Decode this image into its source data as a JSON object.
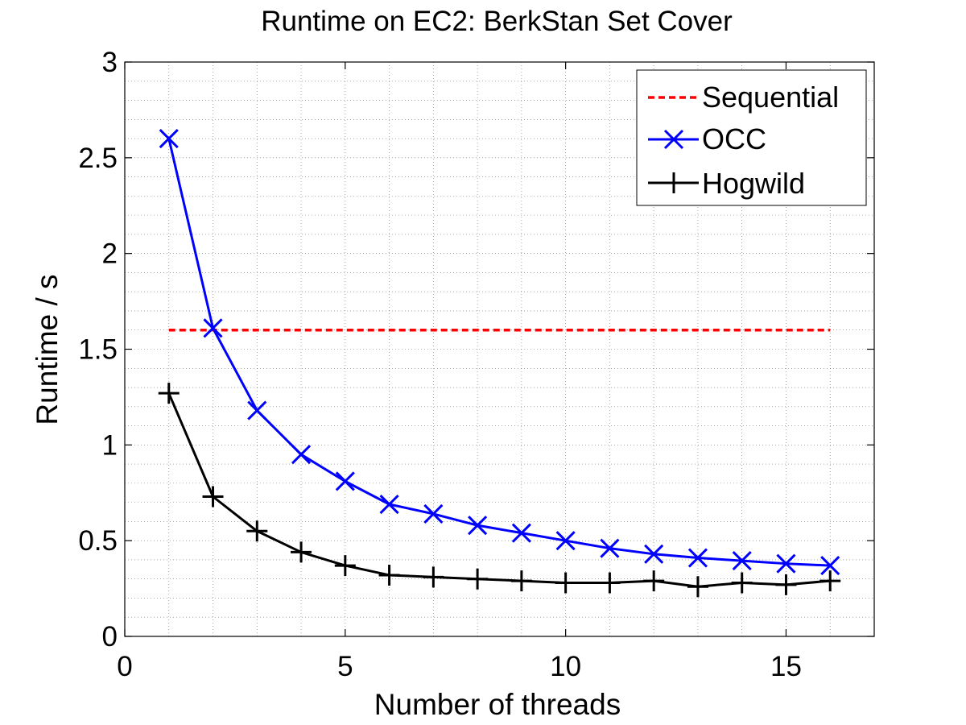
{
  "chart_data": {
    "type": "line",
    "title": "Runtime on EC2: BerkStan Set Cover",
    "xlabel": "Number of threads",
    "ylabel": "Runtime / s",
    "xlim": [
      0,
      17
    ],
    "ylim": [
      0,
      3
    ],
    "xticks": [
      0,
      5,
      10,
      15
    ],
    "yticks": [
      0,
      0.5,
      1,
      1.5,
      2,
      2.5,
      3
    ],
    "xtick_labels": [
      "0",
      "5",
      "10",
      "15"
    ],
    "ytick_labels": [
      "0",
      "0.5",
      "1",
      "1.5",
      "2",
      "2.5",
      "3"
    ],
    "grid": "major and minor, dotted",
    "legend_position": "top-right",
    "series": [
      {
        "name": "Sequential",
        "color": "#ff0000",
        "style": "dashed",
        "marker": "none",
        "x": [
          1,
          16
        ],
        "y": [
          1.6,
          1.6
        ]
      },
      {
        "name": "OCC",
        "color": "#0000ff",
        "style": "solid",
        "marker": "x",
        "x": [
          1,
          2,
          3,
          4,
          5,
          6,
          7,
          8,
          9,
          10,
          11,
          12,
          13,
          14,
          15,
          16
        ],
        "y": [
          2.6,
          1.61,
          1.18,
          0.95,
          0.81,
          0.69,
          0.64,
          0.58,
          0.54,
          0.5,
          0.46,
          0.43,
          0.41,
          0.395,
          0.38,
          0.37
        ]
      },
      {
        "name": "Hogwild",
        "color": "#000000",
        "style": "solid",
        "marker": "+",
        "x": [
          1,
          2,
          3,
          4,
          5,
          6,
          7,
          8,
          9,
          10,
          11,
          12,
          13,
          14,
          15,
          16
        ],
        "y": [
          1.27,
          0.73,
          0.55,
          0.44,
          0.37,
          0.32,
          0.31,
          0.3,
          0.29,
          0.28,
          0.28,
          0.29,
          0.26,
          0.28,
          0.27,
          0.29
        ]
      }
    ]
  }
}
